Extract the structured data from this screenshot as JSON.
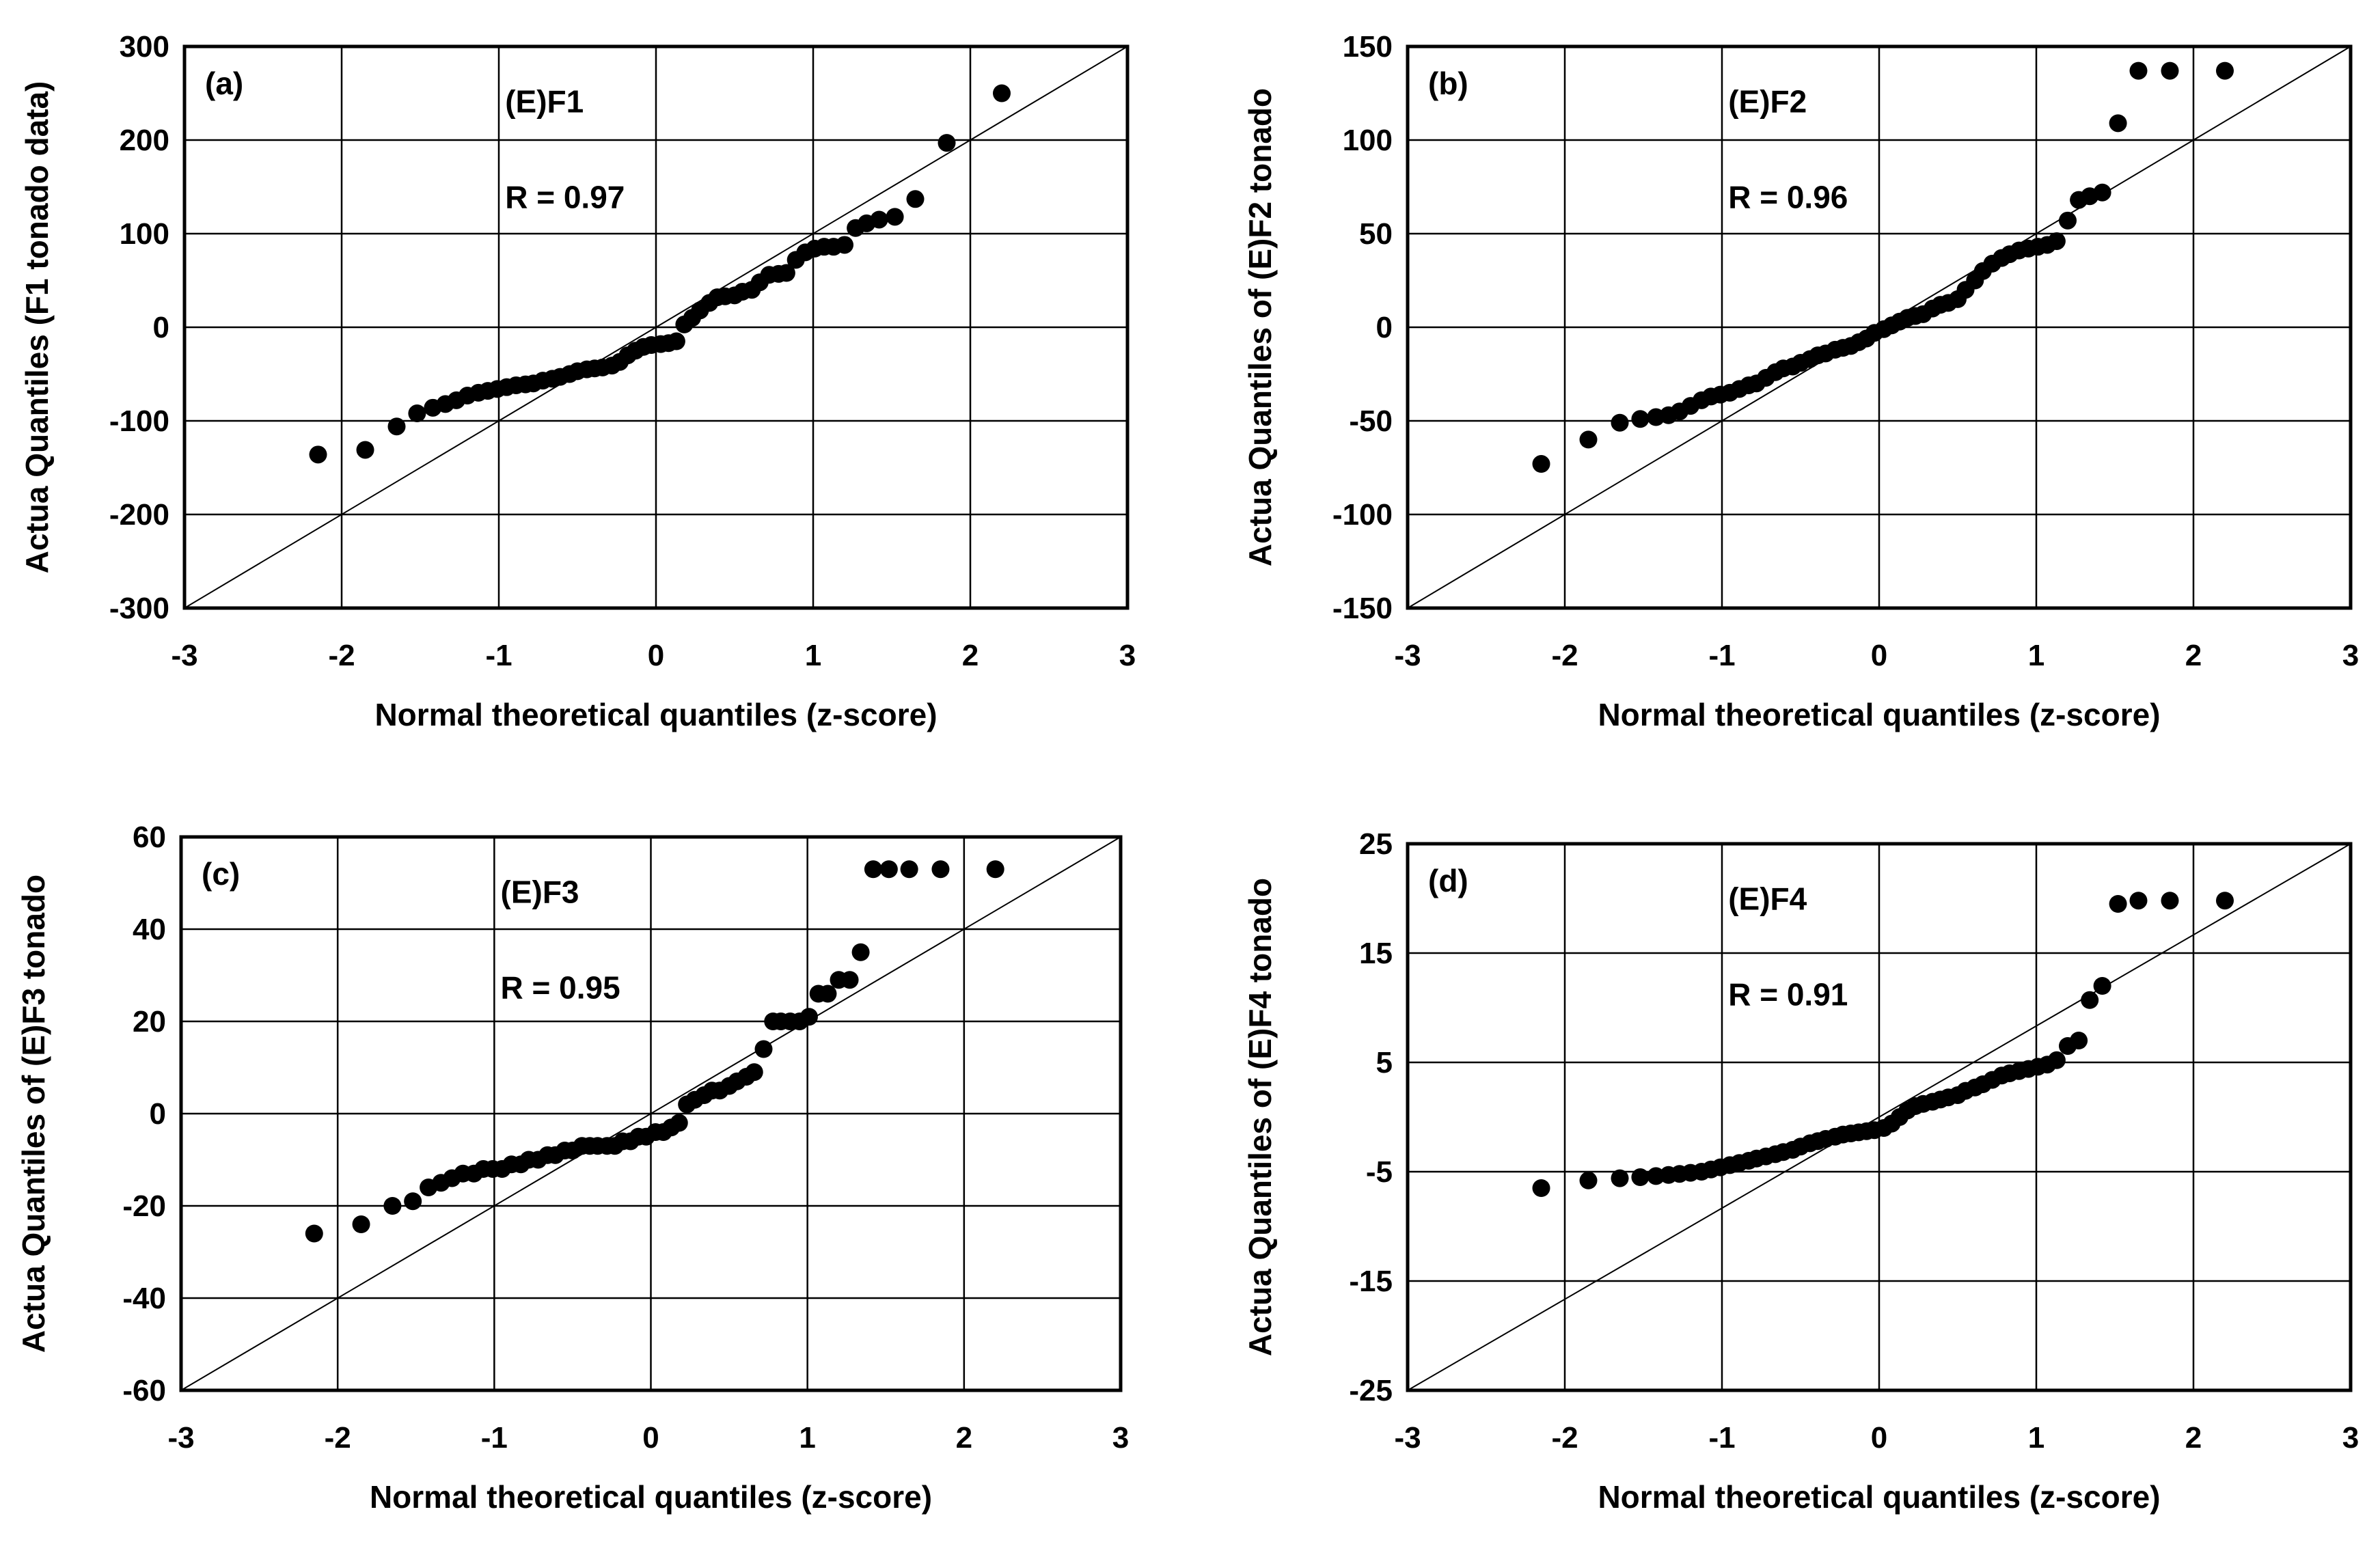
{
  "chart_data": [
    {
      "type": "scatter",
      "panel_label": "(a)",
      "series_label": "(E)F1",
      "r_text": "R = 0.97",
      "xlabel": "Normal theoretical quantiles (z-score)",
      "ylabel": "Actua Quantiles (F1 tonado data)",
      "xlim": [
        -3,
        3
      ],
      "ylim": [
        -300,
        300
      ],
      "xticks": [
        "-3",
        "-2",
        "-1",
        "0",
        "1",
        "2",
        "3"
      ],
      "yticks": [
        "300",
        "200",
        "100",
        "0",
        "-100",
        "-200",
        "-300"
      ],
      "reference_line": "y = 100x",
      "x": [
        -2.15,
        -1.85,
        -1.65,
        -1.52,
        -1.42,
        -1.34,
        -1.27,
        -1.2,
        -1.13,
        -1.07,
        -1.01,
        -0.95,
        -0.89,
        -0.83,
        -0.78,
        -0.72,
        -0.66,
        -0.61,
        -0.55,
        -0.5,
        -0.44,
        -0.39,
        -0.34,
        -0.28,
        -0.23,
        -0.18,
        -0.13,
        -0.08,
        -0.03,
        0.03,
        0.08,
        0.13,
        0.18,
        0.23,
        0.28,
        0.34,
        0.39,
        0.44,
        0.5,
        0.55,
        0.61,
        0.66,
        0.72,
        0.78,
        0.83,
        0.89,
        0.95,
        1.01,
        1.07,
        1.13,
        1.2,
        1.27,
        1.34,
        1.42,
        1.52,
        1.65,
        1.85,
        2.2
      ],
      "y": [
        -136,
        -131,
        -106,
        -92,
        -86,
        -82,
        -78,
        -73,
        -70,
        -68,
        -66,
        -64,
        -62,
        -61,
        -60,
        -57,
        -55,
        -53,
        -50,
        -47,
        -45,
        -44,
        -43,
        -41,
        -37,
        -30,
        -25,
        -21,
        -19,
        -18,
        -17,
        -15,
        3,
        10,
        18,
        26,
        32,
        33,
        34,
        38,
        40,
        48,
        56,
        57,
        58,
        72,
        80,
        84,
        86,
        86,
        88,
        106,
        111,
        115,
        118,
        137,
        197,
        250
      ]
    },
    {
      "type": "scatter",
      "panel_label": "(b)",
      "series_label": "(E)F2",
      "r_text": "R = 0.96",
      "xlabel": "Normal theoretical quantiles (z-score)",
      "ylabel": "Actua Quantiles of (E)F2 tonado",
      "xlim": [
        -3,
        3
      ],
      "ylim": [
        -150,
        150
      ],
      "xticks": [
        "-3",
        "-2",
        "-1",
        "0",
        "1",
        "2",
        "3"
      ],
      "yticks": [
        "150",
        "100",
        "50",
        "0",
        "-50",
        "-100",
        "-150"
      ],
      "reference_line": "y = 50x",
      "x": [
        -2.15,
        -1.85,
        -1.65,
        -1.52,
        -1.42,
        -1.34,
        -1.27,
        -1.2,
        -1.13,
        -1.07,
        -1.01,
        -0.95,
        -0.89,
        -0.83,
        -0.78,
        -0.72,
        -0.66,
        -0.61,
        -0.55,
        -0.5,
        -0.44,
        -0.39,
        -0.34,
        -0.28,
        -0.23,
        -0.18,
        -0.13,
        -0.08,
        -0.03,
        0.03,
        0.08,
        0.13,
        0.18,
        0.23,
        0.28,
        0.34,
        0.39,
        0.44,
        0.5,
        0.55,
        0.61,
        0.66,
        0.72,
        0.78,
        0.83,
        0.89,
        0.95,
        1.01,
        1.07,
        1.13,
        1.2,
        1.27,
        1.34,
        1.42,
        1.52,
        1.65,
        1.85,
        2.2
      ],
      "y": [
        -73,
        -60,
        -51,
        -49,
        -48,
        -47,
        -45,
        -42,
        -39,
        -37,
        -36,
        -35,
        -33,
        -31,
        -30,
        -27,
        -24,
        -22,
        -21,
        -19,
        -17,
        -15,
        -14,
        -12,
        -11,
        -10,
        -8,
        -6,
        -3,
        -1,
        1,
        3,
        5,
        6,
        7,
        10,
        12,
        13,
        15,
        20,
        25,
        30,
        34,
        37,
        39,
        41,
        42,
        43,
        44,
        46,
        57,
        68,
        70,
        72,
        109,
        137,
        137,
        137
      ]
    },
    {
      "type": "scatter",
      "panel_label": "(c)",
      "series_label": "(E)F3",
      "r_text": "R = 0.95",
      "xlabel": "Normal theoretical quantiles (z-score)",
      "ylabel": "Actua Quantiles of (E)F3 tonado",
      "xlim": [
        -3,
        3
      ],
      "ylim": [
        -60,
        60
      ],
      "xticks": [
        "-3",
        "-2",
        "-1",
        "0",
        "1",
        "2",
        "3"
      ],
      "yticks": [
        "60",
        "40",
        "20",
        "0",
        "-20",
        "-40",
        "-60"
      ],
      "reference_line": "y = 20x",
      "x": [
        -2.15,
        -1.85,
        -1.65,
        -1.52,
        -1.42,
        -1.34,
        -1.27,
        -1.2,
        -1.13,
        -1.07,
        -1.01,
        -0.95,
        -0.89,
        -0.83,
        -0.78,
        -0.72,
        -0.66,
        -0.61,
        -0.55,
        -0.5,
        -0.44,
        -0.39,
        -0.34,
        -0.28,
        -0.23,
        -0.18,
        -0.13,
        -0.08,
        -0.03,
        0.03,
        0.08,
        0.13,
        0.18,
        0.23,
        0.28,
        0.34,
        0.39,
        0.44,
        0.5,
        0.55,
        0.61,
        0.66,
        0.72,
        0.78,
        0.83,
        0.89,
        0.95,
        1.01,
        1.07,
        1.13,
        1.2,
        1.27,
        1.34,
        1.42,
        1.52,
        1.65,
        1.85,
        2.2
      ],
      "y": [
        -26,
        -24,
        -20,
        -19,
        -16,
        -15,
        -14,
        -13,
        -13,
        -12,
        -12,
        -12,
        -11,
        -11,
        -10,
        -10,
        -9,
        -9,
        -8,
        -8,
        -7,
        -7,
        -7,
        -7,
        -7,
        -6,
        -6,
        -5,
        -5,
        -4,
        -4,
        -3,
        -2,
        2,
        3,
        4,
        5,
        5,
        6,
        7,
        8,
        9,
        14,
        20,
        20,
        20,
        20,
        21,
        26,
        26,
        29,
        29,
        35,
        53,
        53,
        53,
        53,
        53
      ]
    },
    {
      "type": "scatter",
      "panel_label": "(d)",
      "series_label": "(E)F4",
      "r_text": "R = 0.91",
      "xlabel": "Normal theoretical quantiles (z-score)",
      "ylabel": "Actua Quantiles of (E)F4 tonado",
      "xlim": [
        -3,
        3
      ],
      "ylim": [
        -25,
        25
      ],
      "xticks": [
        "-3",
        "-2",
        "-1",
        "0",
        "1",
        "2",
        "3"
      ],
      "yticks": [
        "25",
        "15",
        "5",
        "-5",
        "-15",
        "-25"
      ],
      "reference_line": "y = 8.33x",
      "x": [
        -2.15,
        -1.85,
        -1.65,
        -1.52,
        -1.42,
        -1.34,
        -1.27,
        -1.2,
        -1.13,
        -1.07,
        -1.01,
        -0.95,
        -0.89,
        -0.83,
        -0.78,
        -0.72,
        -0.66,
        -0.61,
        -0.55,
        -0.5,
        -0.44,
        -0.39,
        -0.34,
        -0.28,
        -0.23,
        -0.18,
        -0.13,
        -0.08,
        -0.03,
        0.03,
        0.08,
        0.13,
        0.18,
        0.23,
        0.28,
        0.34,
        0.39,
        0.44,
        0.5,
        0.55,
        0.61,
        0.66,
        0.72,
        0.78,
        0.83,
        0.89,
        0.95,
        1.01,
        1.07,
        1.13,
        1.2,
        1.27,
        1.34,
        1.42,
        1.52,
        1.65,
        1.85,
        2.2
      ],
      "y": [
        -6.5,
        -5.8,
        -5.6,
        -5.5,
        -5.4,
        -5.3,
        -5.2,
        -5.1,
        -5.0,
        -4.8,
        -4.6,
        -4.4,
        -4.2,
        -4.0,
        -3.8,
        -3.6,
        -3.4,
        -3.2,
        -3.0,
        -2.7,
        -2.4,
        -2.2,
        -2.0,
        -1.8,
        -1.6,
        -1.5,
        -1.4,
        -1.3,
        -1.2,
        -1.0,
        -0.6,
        0.0,
        0.6,
        1.0,
        1.2,
        1.4,
        1.6,
        1.8,
        2.0,
        2.4,
        2.7,
        3.0,
        3.4,
        3.8,
        4.0,
        4.2,
        4.4,
        4.6,
        4.8,
        5.2,
        6.5,
        7.0,
        10.7,
        12.0,
        19.5,
        19.8,
        19.8,
        19.8
      ]
    }
  ]
}
